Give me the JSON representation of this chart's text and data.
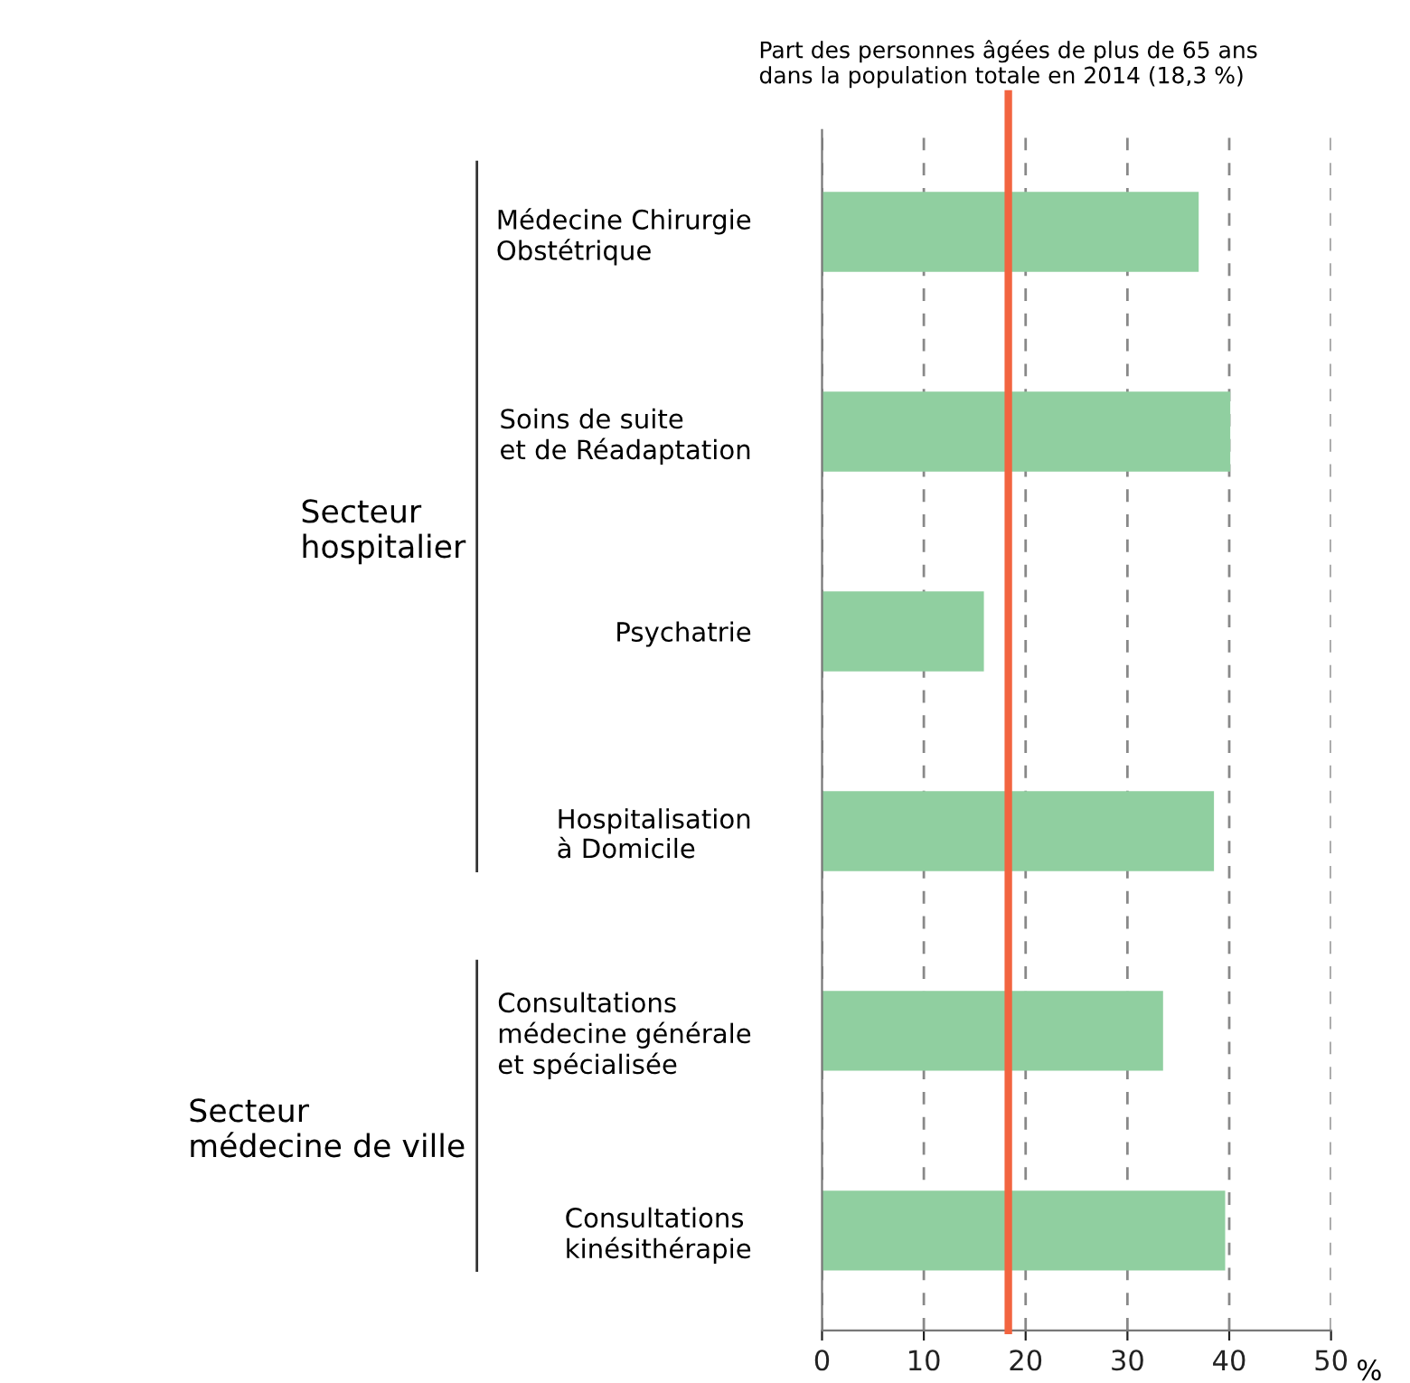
{
  "chart_data": {
    "type": "bar",
    "orientation": "horizontal",
    "categories": [
      "Médecine Chirurgie\nObstétrique",
      "Soins de suite\net de Réadaptation",
      "Psychatrie",
      "Hospitalisation\nà Domicile",
      "Consultations\nmédecine générale\net spécialisée",
      "Consultations\nkinésithérapie"
    ],
    "values": [
      37.0,
      40.1,
      15.9,
      38.5,
      33.5,
      39.6
    ],
    "color": "#90cfa0",
    "xlim": [
      0,
      50
    ],
    "xticks": [
      0,
      10,
      20,
      30,
      40,
      50
    ],
    "xlabel": "%",
    "grid": "x",
    "ref_lines": [
      {
        "axis": "x",
        "value": 18.3,
        "label": "Part des personnes âgées de plus de 65 ans\ndans la population totale en 2014 (18,3 %)",
        "color": "#f26440"
      }
    ],
    "annotations": [
      "Secteur\nhospitalier",
      "Secteur\nmédecine de ville"
    ]
  }
}
